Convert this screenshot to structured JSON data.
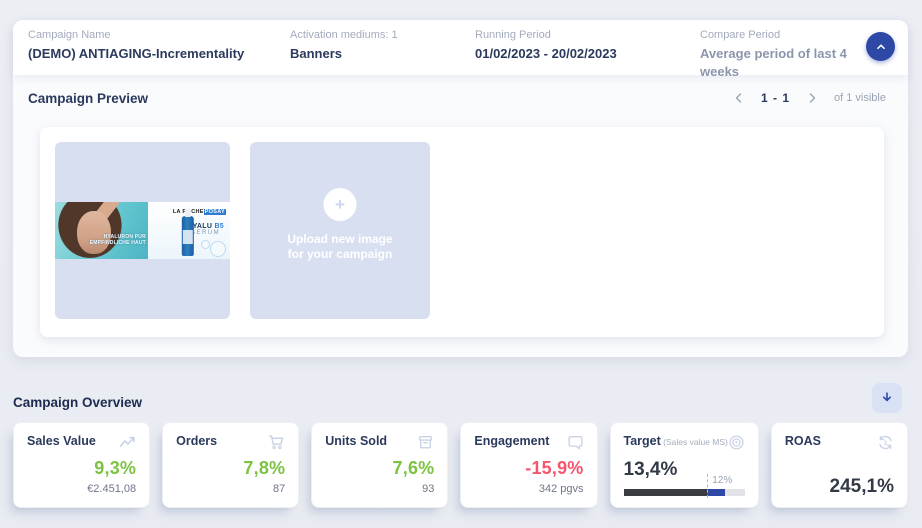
{
  "header": {
    "campaign_name_label": "Campaign Name",
    "campaign_name_value": "(DEMO) ANTIAGING-Incrementality",
    "activation_label": "Activation mediums: 1",
    "activation_value": "Banners",
    "running_label": "Running Period",
    "running_value": "01/02/2023 - 20/02/2023",
    "compare_label": "Compare Period",
    "compare_value": "Average period of last 4 weeks"
  },
  "preview": {
    "title": "Campaign Preview",
    "pagination": {
      "range": "1 - 1",
      "suffix": "of 1 visible"
    },
    "banner": {
      "brand_left": "LA ROCHE",
      "brand_right": "POSAY",
      "overlay_line1": "HYALURON PUR",
      "overlay_line2": "EMPFINDLICHE HAUT",
      "product_name": "HYALU ",
      "product_variant": "B5",
      "product_type": "SERUM"
    },
    "upload_text": "Upload new image for your campaign"
  },
  "overview": {
    "title": "Campaign Overview",
    "cards": [
      {
        "title": "Sales Value",
        "icon": "line-chart",
        "value": "9,3%",
        "trend": "positive",
        "sub": "€2.451,08"
      },
      {
        "title": "Orders",
        "icon": "cart",
        "value": "7,8%",
        "trend": "positive",
        "sub": "87"
      },
      {
        "title": "Units Sold",
        "icon": "box",
        "value": "7,6%",
        "trend": "positive",
        "sub": "93"
      },
      {
        "title": "Engagement",
        "icon": "chat",
        "value": "-15,9%",
        "trend": "negative",
        "sub": "342 pgvs"
      },
      {
        "title": "Target",
        "title_suffix": " (Sales value MS)",
        "icon": "target",
        "value": "13,4%",
        "trend": "neutral",
        "marker_label": "12%",
        "progress": {
          "dark_pct": 69,
          "blue_pct": 15,
          "marker_pct": 69
        }
      },
      {
        "title": "ROAS",
        "icon": "refresh-dollar",
        "value": "245,1%",
        "trend": "neutral"
      }
    ]
  },
  "colors": {
    "positive": "#7dc242",
    "negative": "#f4566d",
    "accent_blue": "#2d49a5",
    "icon_blue": "#c9d3e6",
    "tile_bg": "#d8dff0"
  }
}
